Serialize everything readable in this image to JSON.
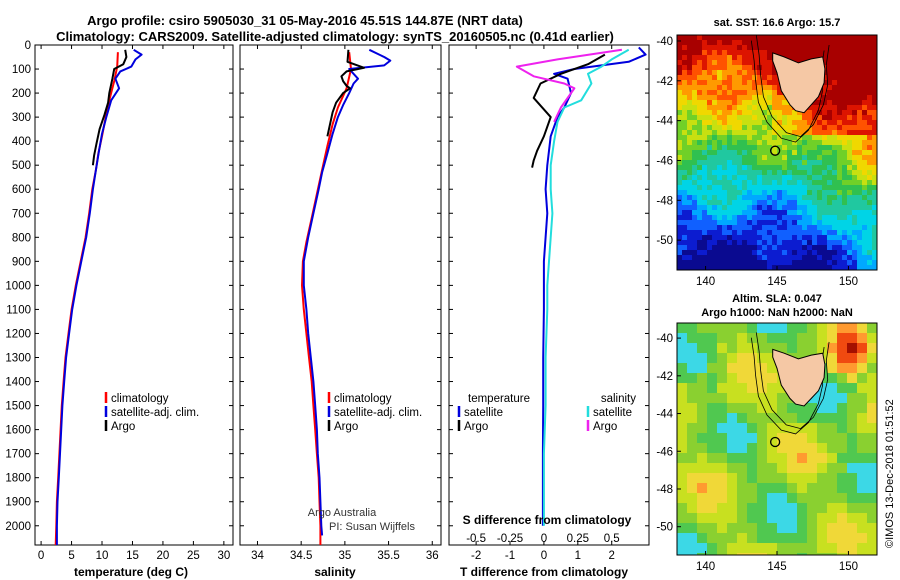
{
  "header": {
    "title_line1": "Argo profile: csiro 5905030_31 05-May-2016 45.51S 144.87E (NRT data)",
    "title_line2": "Climatology: CARS2009. Satellite-adjusted climatology: synTS_20160505.nc (0.41d earlier)"
  },
  "colors": {
    "climatology": "#ff0000",
    "satellite": "#0000dd",
    "argo": "#000000",
    "satellite_s": "#22dddd",
    "argo_s": "#ee22ee",
    "land": "#f5c8a5"
  },
  "chart_data": [
    {
      "type": "line",
      "id": "temperature",
      "xlabel": "temperature (deg C)",
      "xlim": [
        -1,
        31.5
      ],
      "ylim": [
        2080,
        0
      ],
      "xticks": [
        0,
        5,
        10,
        15,
        20,
        25,
        30
      ],
      "yticks": [
        0,
        100,
        200,
        300,
        400,
        500,
        600,
        700,
        800,
        900,
        1000,
        1100,
        1200,
        1300,
        1400,
        1500,
        1600,
        1700,
        1800,
        1900,
        2000
      ],
      "legend": [
        "climatology",
        "satellite-adj. clim.",
        "Argo"
      ],
      "series": [
        {
          "name": "climatology",
          "color": "#ff0000",
          "points": [
            [
              12.6,
              30
            ],
            [
              12.5,
              90
            ],
            [
              12.0,
              150
            ],
            [
              11.3,
              220
            ],
            [
              10.6,
              300
            ],
            [
              10.0,
              380
            ],
            [
              9.4,
              450
            ],
            [
              9.0,
              520
            ],
            [
              8.4,
              600
            ],
            [
              7.9,
              700
            ],
            [
              7.3,
              800
            ],
            [
              6.5,
              900
            ],
            [
              5.7,
              1000
            ],
            [
              5.0,
              1100
            ],
            [
              4.5,
              1200
            ],
            [
              4.0,
              1300
            ],
            [
              3.7,
              1400
            ],
            [
              3.4,
              1500
            ],
            [
              3.2,
              1600
            ],
            [
              3.0,
              1700
            ],
            [
              2.8,
              1800
            ],
            [
              2.6,
              1900
            ],
            [
              2.5,
              2000
            ],
            [
              2.4,
              2080
            ]
          ]
        },
        {
          "name": "satellite-adj. clim.",
          "color": "#0000dd",
          "points": [
            [
              15.2,
              20
            ],
            [
              16.5,
              40
            ],
            [
              15.5,
              60
            ],
            [
              14.8,
              90
            ],
            [
              13.0,
              110
            ],
            [
              12.2,
              140
            ],
            [
              12.8,
              180
            ],
            [
              11.5,
              230
            ],
            [
              10.7,
              300
            ],
            [
              10.0,
              370
            ],
            [
              9.5,
              440
            ],
            [
              9.0,
              520
            ],
            [
              8.5,
              600
            ],
            [
              8.0,
              700
            ],
            [
              7.4,
              800
            ],
            [
              6.6,
              900
            ],
            [
              5.8,
              1000
            ],
            [
              5.1,
              1100
            ],
            [
              4.6,
              1200
            ],
            [
              4.1,
              1300
            ],
            [
              3.8,
              1400
            ],
            [
              3.5,
              1500
            ],
            [
              3.3,
              1600
            ],
            [
              3.1,
              1700
            ],
            [
              2.9,
              1800
            ],
            [
              2.7,
              1900
            ],
            [
              2.6,
              2000
            ],
            [
              2.6,
              2080
            ]
          ]
        },
        {
          "name": "Argo",
          "color": "#000000",
          "points": [
            [
              13.8,
              20
            ],
            [
              14.0,
              50
            ],
            [
              13.5,
              80
            ],
            [
              12.0,
              100
            ],
            [
              11.7,
              140
            ],
            [
              11.2,
              200
            ],
            [
              11.0,
              240
            ],
            [
              10.4,
              290
            ],
            [
              9.6,
              350
            ],
            [
              9.1,
              410
            ],
            [
              8.7,
              460
            ],
            [
              8.5,
              500
            ]
          ]
        }
      ]
    },
    {
      "type": "line",
      "id": "salinity",
      "xlabel": "salinity",
      "xlim": [
        33.8,
        36.1
      ],
      "ylim": [
        2080,
        0
      ],
      "xticks": [
        34,
        34.5,
        35,
        35.5,
        36
      ],
      "legend": [
        "climatology",
        "satellite-adj. clim.",
        "Argo"
      ],
      "credit": [
        "Argo Australia",
        "PI: Susan Wijffels"
      ],
      "series": [
        {
          "name": "climatology",
          "color": "#ff0000",
          "points": [
            [
              35.05,
              30
            ],
            [
              35.07,
              100
            ],
            [
              35.02,
              180
            ],
            [
              34.92,
              260
            ],
            [
              34.86,
              330
            ],
            [
              34.8,
              420
            ],
            [
              34.74,
              520
            ],
            [
              34.68,
              620
            ],
            [
              34.62,
              720
            ],
            [
              34.56,
              820
            ],
            [
              34.52,
              900
            ],
            [
              34.51,
              1000
            ],
            [
              34.53,
              1100
            ],
            [
              34.56,
              1200
            ],
            [
              34.59,
              1300
            ],
            [
              34.62,
              1400
            ],
            [
              34.64,
              1500
            ],
            [
              34.66,
              1600
            ],
            [
              34.68,
              1700
            ],
            [
              34.7,
              1800
            ],
            [
              34.71,
              1900
            ],
            [
              34.72,
              2000
            ],
            [
              34.72,
              2080
            ]
          ]
        },
        {
          "name": "satellite-adj. clim.",
          "color": "#0000dd",
          "points": [
            [
              35.28,
              20
            ],
            [
              35.45,
              50
            ],
            [
              35.52,
              65
            ],
            [
              35.45,
              85
            ],
            [
              35.05,
              100
            ],
            [
              35.15,
              140
            ],
            [
              35.1,
              160
            ],
            [
              35.05,
              200
            ],
            [
              34.98,
              250
            ],
            [
              34.92,
              300
            ],
            [
              34.86,
              370
            ],
            [
              34.8,
              450
            ],
            [
              34.74,
              530
            ],
            [
              34.7,
              600
            ],
            [
              34.64,
              700
            ],
            [
              34.58,
              800
            ],
            [
              34.53,
              900
            ],
            [
              34.53,
              1000
            ],
            [
              34.56,
              1100
            ],
            [
              34.58,
              1200
            ],
            [
              34.61,
              1300
            ],
            [
              34.64,
              1400
            ],
            [
              34.66,
              1500
            ],
            [
              34.68,
              1600
            ],
            [
              34.69,
              1700
            ],
            [
              34.71,
              1800
            ],
            [
              34.72,
              1900
            ],
            [
              34.73,
              2000
            ],
            [
              34.74,
              2040
            ]
          ]
        },
        {
          "name": "Argo",
          "color": "#000000",
          "points": [
            [
              35.04,
              20
            ],
            [
              35.03,
              70
            ],
            [
              35.22,
              95
            ],
            [
              35.02,
              110
            ],
            [
              34.96,
              130
            ],
            [
              34.98,
              150
            ],
            [
              35.02,
              170
            ],
            [
              35.06,
              180
            ],
            [
              34.98,
              200
            ],
            [
              34.9,
              240
            ],
            [
              34.86,
              280
            ],
            [
              34.83,
              330
            ],
            [
              34.8,
              380
            ]
          ]
        }
      ]
    },
    {
      "type": "line",
      "id": "difference",
      "xlabel": "T difference from climatology",
      "xlabel_top": "S difference from climatology",
      "xlim": [
        -2.8,
        3.1
      ],
      "ylim": [
        2080,
        0
      ],
      "xticks": [
        -2,
        -1,
        0,
        1,
        2
      ],
      "xticks_s": [
        {
          "value": -2,
          "label": "-0.5"
        },
        {
          "value": -1,
          "label": "-0.25"
        },
        {
          "value": 0,
          "label": "0"
        },
        {
          "value": 1,
          "label": "0.25"
        },
        {
          "value": 2,
          "label": "0.5"
        }
      ],
      "legend_left_title": "temperature",
      "legend_right_title": "salinity",
      "legend_left": [
        "satellite",
        "Argo"
      ],
      "legend_right": [
        "satellite",
        "Argo"
      ],
      "series": [
        {
          "name": "T satellite",
          "color": "#0000dd",
          "points": [
            [
              2.8,
              10
            ],
            [
              3.0,
              40
            ],
            [
              2.5,
              70
            ],
            [
              0.9,
              100
            ],
            [
              0.3,
              120
            ],
            [
              0.7,
              140
            ],
            [
              0.8,
              200
            ],
            [
              0.6,
              260
            ],
            [
              0.4,
              300
            ],
            [
              0.2,
              380
            ],
            [
              0.1,
              500
            ],
            [
              0.05,
              600
            ],
            [
              0.1,
              700
            ],
            [
              0.05,
              800
            ],
            [
              0.0,
              900
            ],
            [
              0.0,
              1000
            ],
            [
              0.0,
              1100
            ],
            [
              -0.02,
              1300
            ],
            [
              -0.02,
              1500
            ],
            [
              -0.03,
              1700
            ],
            [
              -0.03,
              1900
            ],
            [
              -0.03,
              2000
            ]
          ]
        },
        {
          "name": "T Argo",
          "color": "#000000",
          "points": [
            [
              1.8,
              40
            ],
            [
              1.3,
              80
            ],
            [
              0.5,
              120
            ],
            [
              -0.1,
              160
            ],
            [
              -0.3,
              220
            ],
            [
              0.2,
              300
            ],
            [
              0.0,
              380
            ],
            [
              -0.2,
              440
            ],
            [
              -0.3,
              480
            ],
            [
              -0.35,
              510
            ]
          ]
        },
        {
          "name": "S satellite",
          "color": "#22dddd",
          "points": [
            [
              2.5,
              20
            ],
            [
              2.0,
              60
            ],
            [
              1.7,
              90
            ],
            [
              1.3,
              120
            ],
            [
              1.4,
              160
            ],
            [
              1.1,
              230
            ],
            [
              0.6,
              260
            ],
            [
              0.4,
              320
            ],
            [
              0.3,
              400
            ],
            [
              0.2,
              500
            ],
            [
              0.2,
              600
            ],
            [
              0.25,
              700
            ],
            [
              0.2,
              800
            ],
            [
              0.15,
              900
            ],
            [
              0.1,
              1000
            ],
            [
              0.1,
              1100
            ],
            [
              0.05,
              1300
            ],
            [
              0.05,
              1500
            ],
            [
              0.0,
              1700
            ],
            [
              0.0,
              1900
            ],
            [
              0.0,
              2000
            ]
          ]
        },
        {
          "name": "S Argo",
          "color": "#ee22ee",
          "points": [
            [
              2.3,
              20
            ],
            [
              0.4,
              60
            ],
            [
              -0.8,
              90
            ],
            [
              -0.3,
              130
            ],
            [
              0.6,
              160
            ],
            [
              0.9,
              180
            ],
            [
              0.5,
              260
            ],
            [
              0.3,
              320
            ]
          ]
        }
      ]
    },
    {
      "type": "heatmap",
      "id": "sst_map",
      "title": "sat. SST: 16.6 Argo: 15.7",
      "xlim": [
        138,
        152
      ],
      "ylim": [
        -51.5,
        -39.7
      ],
      "xticks": [
        140,
        145,
        150
      ],
      "yticks": [
        -40,
        -42,
        -44,
        -46,
        -48,
        -50
      ],
      "argo_position": {
        "lon": 144.87,
        "lat": -45.51
      }
    },
    {
      "type": "heatmap",
      "id": "sla_map",
      "title": "Altim. SLA: 0.047",
      "subtitle": "Argo h1000: NaN h2000: NaN",
      "xlim": [
        138,
        152
      ],
      "ylim": [
        -51.5,
        -39.2
      ],
      "xticks": [
        140,
        145,
        150
      ],
      "yticks": [
        -40,
        -42,
        -44,
        -46,
        -48,
        -50
      ],
      "argo_position": {
        "lon": 144.87,
        "lat": -45.51
      }
    }
  ],
  "side_credit": "©IMOS 13-Dec-2018 01:51:52"
}
